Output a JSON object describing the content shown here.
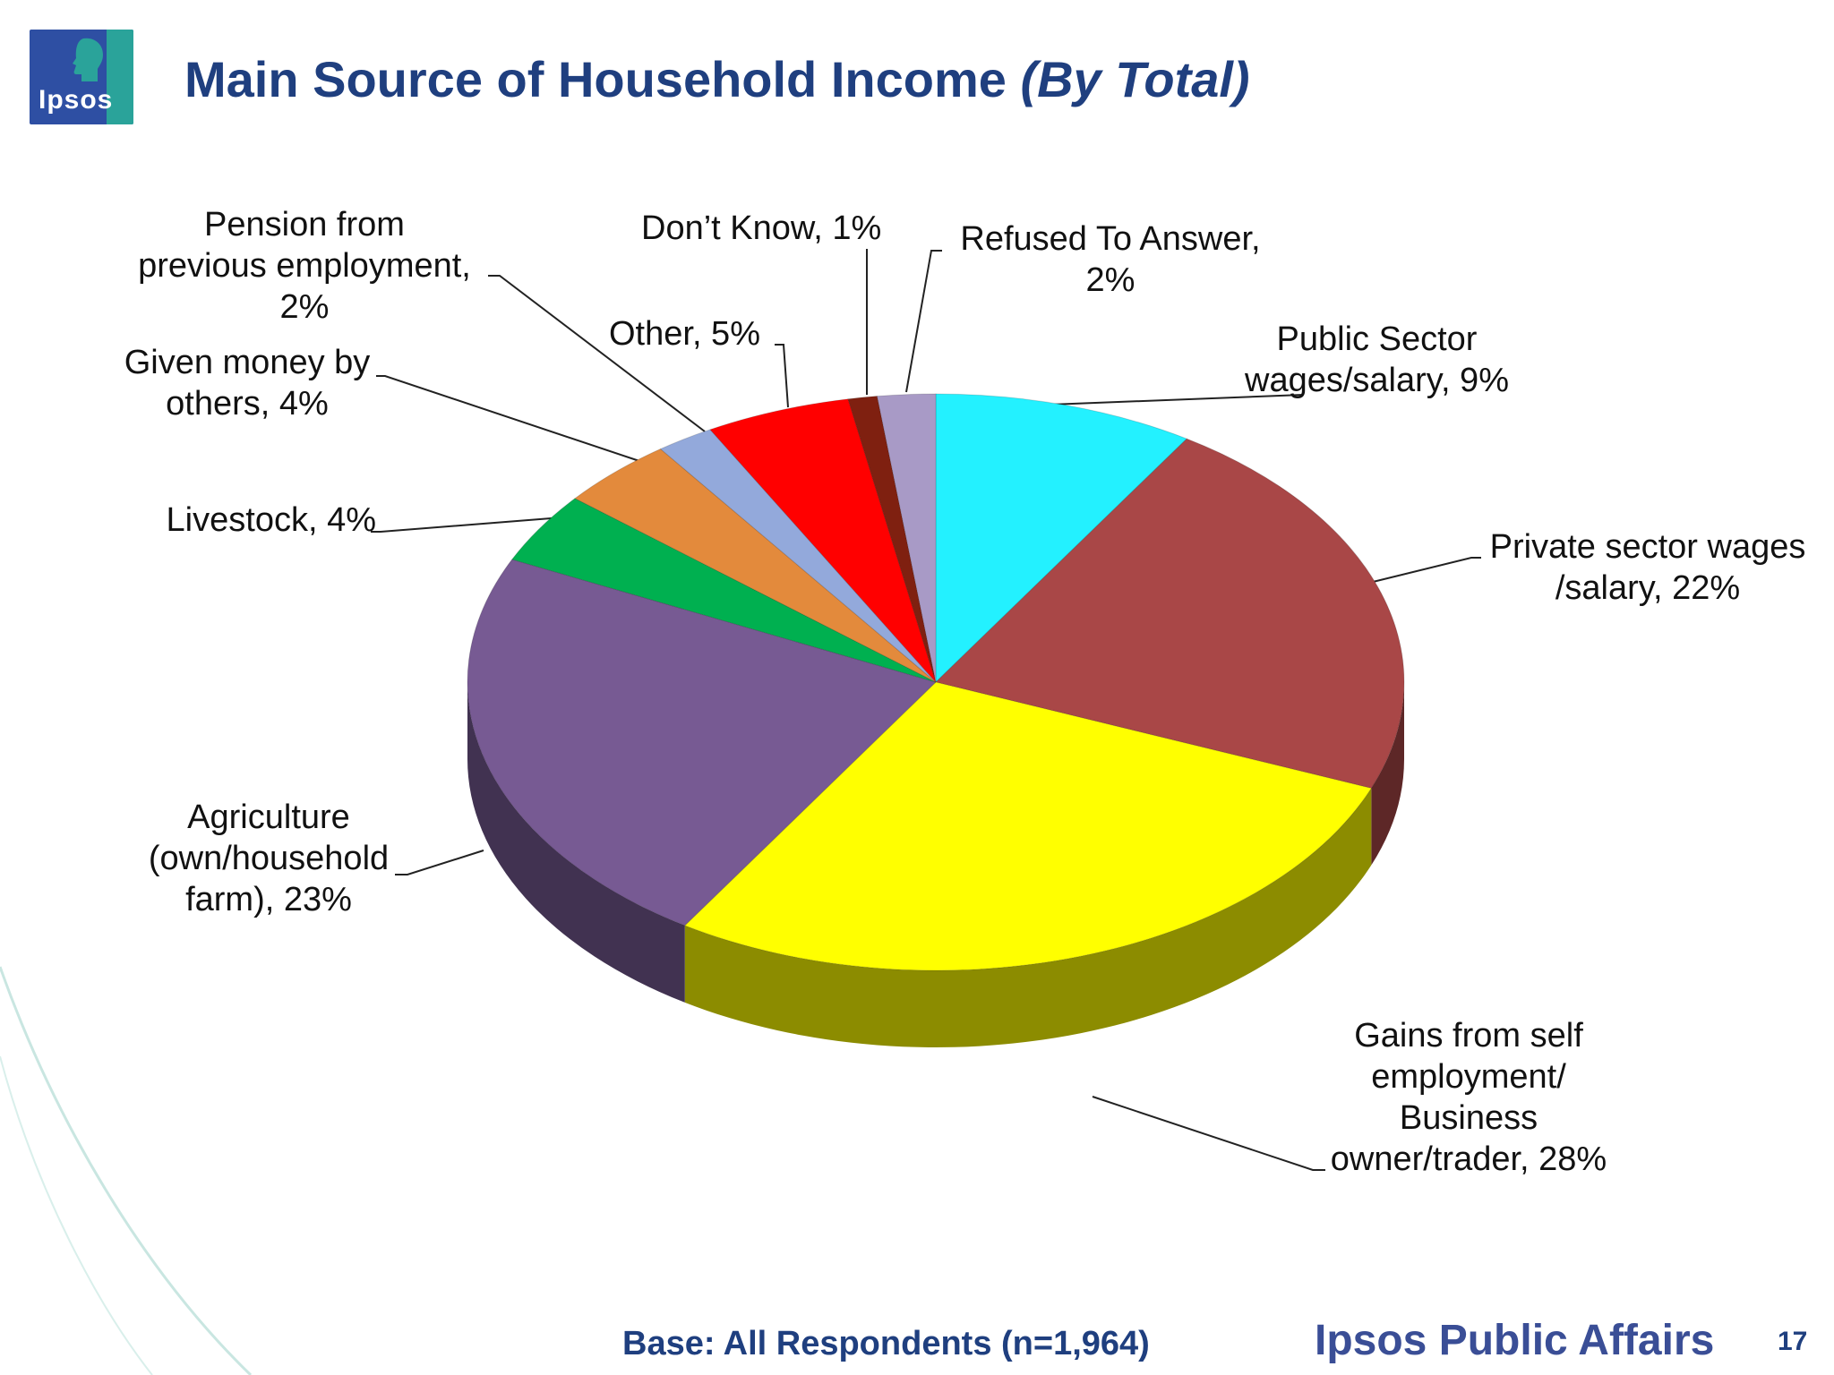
{
  "logo": {
    "text": "Ipsos",
    "colors": {
      "background": "#2e4fa3",
      "tab": "#2aa39a"
    }
  },
  "title": {
    "main": "Main Source of Household Income",
    "emphasis": "(By Total)",
    "color": "#1f3f7f"
  },
  "chart_data": {
    "type": "pie",
    "style": "3d",
    "title": "Main Source of Household Income (By Total)",
    "unit": "%",
    "slices": [
      {
        "label": "Public Sector wages/salary, 9%",
        "category": "Public Sector wages/salary",
        "value": 9,
        "color": "#23f1ff"
      },
      {
        "label": "Private sector wages /salary, 22%",
        "category": "Private sector wages /salary",
        "value": 22,
        "color": "#a94747"
      },
      {
        "label": "Gains from self employment/ Business owner/trader, 28%",
        "category": "Gains from self employment/ Business owner/trader",
        "value": 28,
        "color": "#ffff00"
      },
      {
        "label": "Agriculture (own/household farm), 23%",
        "category": "Agriculture (own/household farm)",
        "value": 23,
        "color": "#775a93"
      },
      {
        "label": "Livestock, 4%",
        "category": "Livestock",
        "value": 4,
        "color": "#00b050"
      },
      {
        "label": "Given money by others, 4%",
        "category": "Given money by others",
        "value": 4,
        "color": "#e38a3c"
      },
      {
        "label": "Pension from previous employment, 2%",
        "category": "Pension from previous employment",
        "value": 2,
        "color": "#93a9db"
      },
      {
        "label": "Other, 5%",
        "category": "Other",
        "value": 5,
        "color": "#ff0000"
      },
      {
        "label": "Don’t Know, 1%",
        "category": "Don’t Know",
        "value": 1,
        "color": "#7f2010"
      },
      {
        "label": "Refused To Answer, 2%",
        "category": "Refused To Answer",
        "value": 2,
        "color": "#a89ac6"
      }
    ]
  },
  "footer": {
    "base": "Base: All Respondents (n=1,964)",
    "brand": "Ipsos Public Affairs",
    "page_number": "17"
  }
}
